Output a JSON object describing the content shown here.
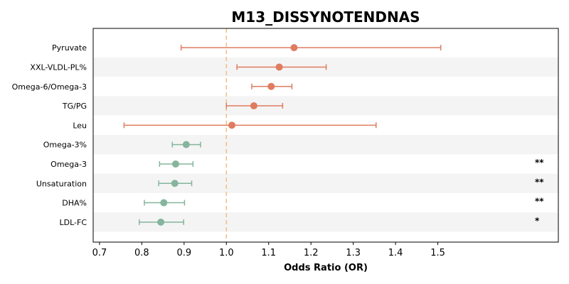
{
  "chart_data": {
    "type": "forest",
    "title": "M13_DISSYNOTENDNAS",
    "xlabel": "Odds Ratio (OR)",
    "ylabel": "",
    "xlim": [
      0.685,
      1.785
    ],
    "x_ticks": [
      0.7,
      0.8,
      0.9,
      1.0,
      1.1,
      1.2,
      1.3,
      1.4,
      1.5
    ],
    "x_tick_labels": [
      "0.7",
      "0.8",
      "0.9",
      "1.0",
      "1.1",
      "1.2",
      "1.3",
      "1.4",
      "1.5"
    ],
    "reference_line": 1.0,
    "grid": false,
    "colors": {
      "positive": "#e07b5f",
      "negative": "#85b59c",
      "reference": "#f0c080",
      "band": "#f4f4f4"
    },
    "rows": [
      {
        "label": "Pyruvate",
        "or": 1.16,
        "lower": 0.893,
        "upper": 1.507,
        "sig": "",
        "direction": "positive"
      },
      {
        "label": "XXL-VLDL-PL%",
        "or": 1.125,
        "lower": 1.025,
        "upper": 1.236,
        "sig": "",
        "direction": "positive"
      },
      {
        "label": "Omega-6/Omega-3",
        "or": 1.106,
        "lower": 1.06,
        "upper": 1.155,
        "sig": "",
        "direction": "positive"
      },
      {
        "label": "TG/PG",
        "or": 1.065,
        "lower": 1.0,
        "upper": 1.133,
        "sig": "",
        "direction": "positive"
      },
      {
        "label": "Leu",
        "or": 1.013,
        "lower": 0.758,
        "upper": 1.354,
        "sig": "",
        "direction": "positive"
      },
      {
        "label": "Omega-3%",
        "or": 0.905,
        "lower": 0.872,
        "upper": 0.939,
        "sig": "",
        "direction": "negative"
      },
      {
        "label": "Omega-3",
        "or": 0.88,
        "lower": 0.842,
        "upper": 0.921,
        "sig": "**",
        "direction": "negative"
      },
      {
        "label": "Unsaturation",
        "or": 0.878,
        "lower": 0.84,
        "upper": 0.918,
        "sig": "**",
        "direction": "negative"
      },
      {
        "label": "DHA%",
        "or": 0.852,
        "lower": 0.806,
        "upper": 0.901,
        "sig": "**",
        "direction": "negative"
      },
      {
        "label": "LDL-FC",
        "or": 0.845,
        "lower": 0.794,
        "upper": 0.899,
        "sig": "*",
        "direction": "negative"
      }
    ]
  }
}
